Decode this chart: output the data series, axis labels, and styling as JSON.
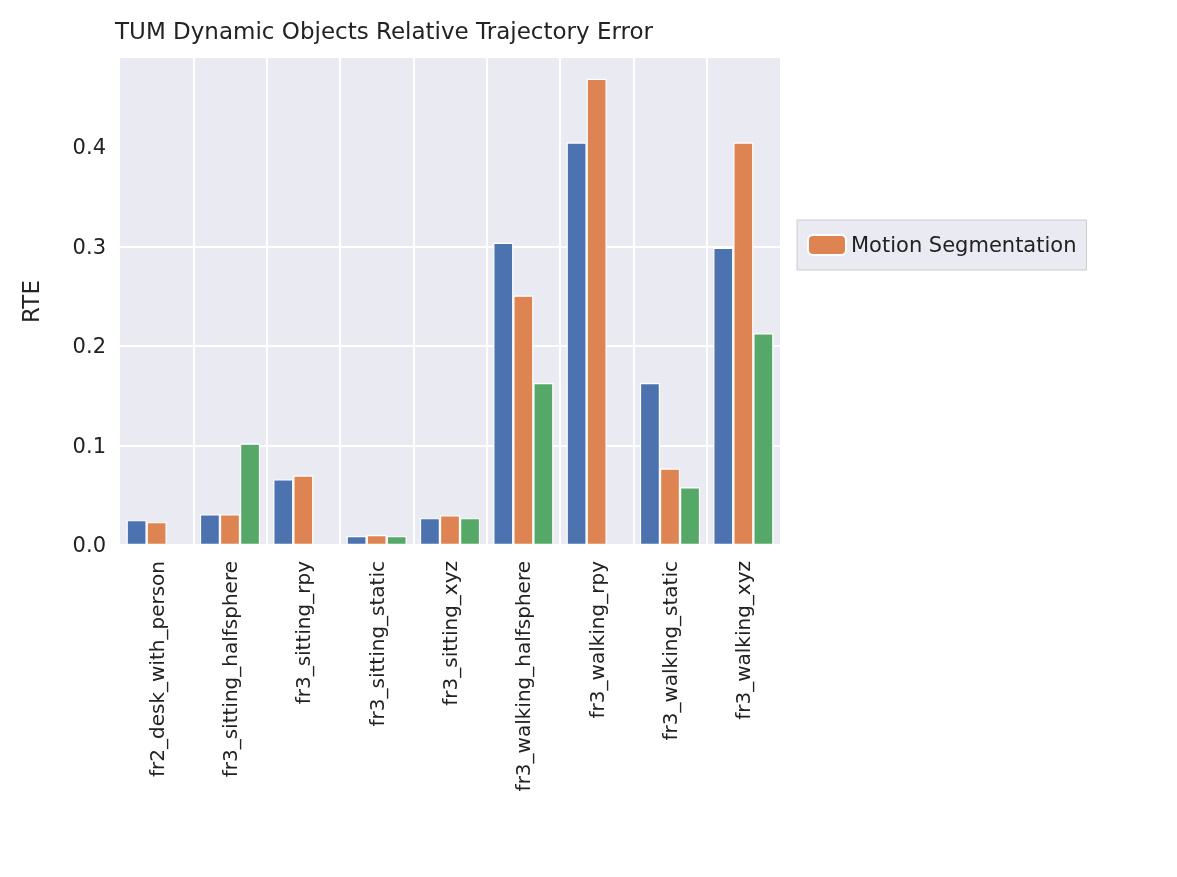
{
  "chart_data": {
    "type": "bar",
    "title": "TUM Dynamic Objects Relative Trajectory Error",
    "ylabel": "RTE",
    "categories": [
      "fr2_desk_with_person",
      "fr3_sitting_halfsphere",
      "fr3_sitting_rpy",
      "fr3_sitting_static",
      "fr3_sitting_xyz",
      "fr3_walking_halfsphere",
      "fr3_walking_rpy",
      "fr3_walking_static",
      "fr3_walking_xyz"
    ],
    "series": [
      {
        "color": "#4c72b0",
        "values": [
          0.025,
          0.031,
          0.066,
          0.009,
          0.027,
          0.304,
          0.405,
          0.163,
          0.299
        ]
      },
      {
        "name": "Motion Segmentation",
        "color": "#dd8452",
        "values": [
          0.023,
          0.031,
          0.07,
          0.01,
          0.03,
          0.251,
          0.469,
          0.077,
          0.405
        ]
      },
      {
        "color": "#55a868",
        "values": [
          null,
          0.102,
          null,
          0.009,
          0.027,
          0.163,
          null,
          0.058,
          0.213
        ]
      }
    ],
    "ylim": [
      0,
      0.49
    ],
    "yticks": [
      {
        "value": 0,
        "label": "0.0"
      },
      {
        "value": 0.1,
        "label": "0.1"
      },
      {
        "value": 0.2,
        "label": "0.2"
      },
      {
        "value": 0.3,
        "label": "0.3"
      },
      {
        "value": 0.4,
        "label": "0.4"
      }
    ],
    "grid": true,
    "legend": "right"
  }
}
